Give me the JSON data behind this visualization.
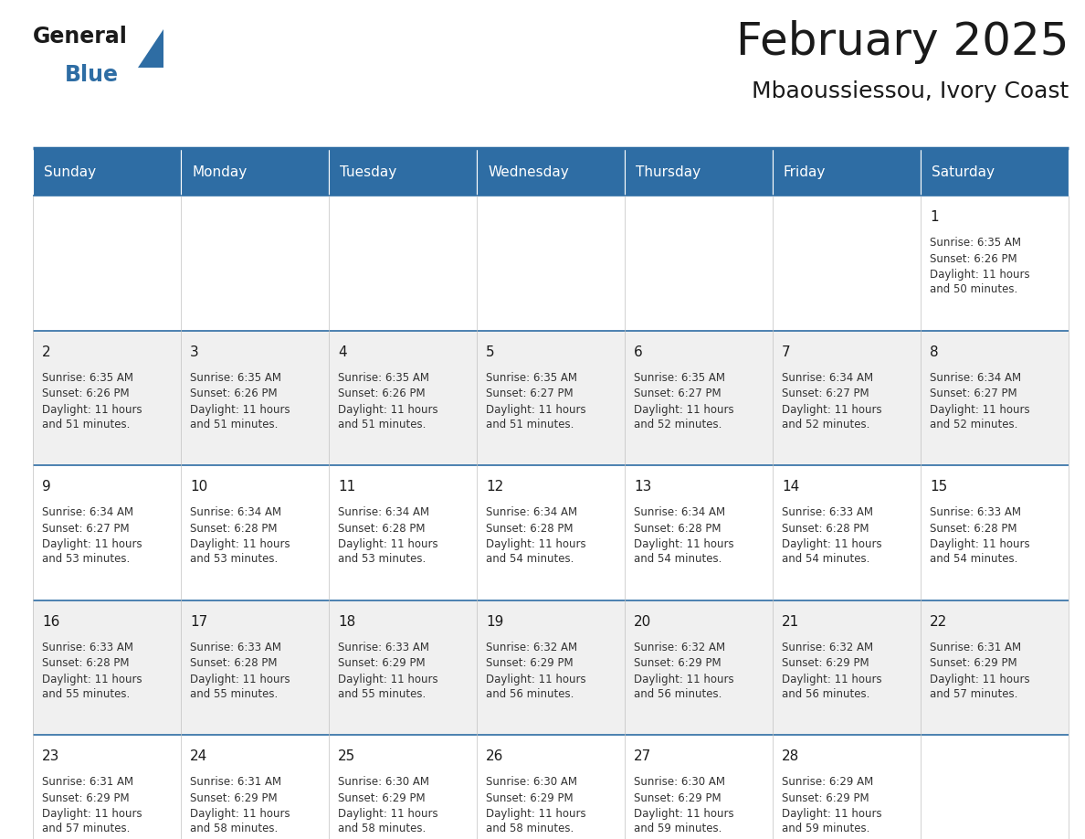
{
  "title": "February 2025",
  "subtitle": "Mbaoussiessou, Ivory Coast",
  "header_color": "#2E6DA4",
  "header_text_color": "#FFFFFF",
  "cell_bg_color": "#F0F0F0",
  "cell_bg_white": "#FFFFFF",
  "border_color": "#2E6DA4",
  "day_headers": [
    "Sunday",
    "Monday",
    "Tuesday",
    "Wednesday",
    "Thursday",
    "Friday",
    "Saturday"
  ],
  "days": [
    {
      "day": 1,
      "col": 6,
      "row": 0,
      "sunrise": "6:35 AM",
      "sunset": "6:26 PM",
      "daylight": "11 hours\nand 50 minutes."
    },
    {
      "day": 2,
      "col": 0,
      "row": 1,
      "sunrise": "6:35 AM",
      "sunset": "6:26 PM",
      "daylight": "11 hours\nand 51 minutes."
    },
    {
      "day": 3,
      "col": 1,
      "row": 1,
      "sunrise": "6:35 AM",
      "sunset": "6:26 PM",
      "daylight": "11 hours\nand 51 minutes."
    },
    {
      "day": 4,
      "col": 2,
      "row": 1,
      "sunrise": "6:35 AM",
      "sunset": "6:26 PM",
      "daylight": "11 hours\nand 51 minutes."
    },
    {
      "day": 5,
      "col": 3,
      "row": 1,
      "sunrise": "6:35 AM",
      "sunset": "6:27 PM",
      "daylight": "11 hours\nand 51 minutes."
    },
    {
      "day": 6,
      "col": 4,
      "row": 1,
      "sunrise": "6:35 AM",
      "sunset": "6:27 PM",
      "daylight": "11 hours\nand 52 minutes."
    },
    {
      "day": 7,
      "col": 5,
      "row": 1,
      "sunrise": "6:34 AM",
      "sunset": "6:27 PM",
      "daylight": "11 hours\nand 52 minutes."
    },
    {
      "day": 8,
      "col": 6,
      "row": 1,
      "sunrise": "6:34 AM",
      "sunset": "6:27 PM",
      "daylight": "11 hours\nand 52 minutes."
    },
    {
      "day": 9,
      "col": 0,
      "row": 2,
      "sunrise": "6:34 AM",
      "sunset": "6:27 PM",
      "daylight": "11 hours\nand 53 minutes."
    },
    {
      "day": 10,
      "col": 1,
      "row": 2,
      "sunrise": "6:34 AM",
      "sunset": "6:28 PM",
      "daylight": "11 hours\nand 53 minutes."
    },
    {
      "day": 11,
      "col": 2,
      "row": 2,
      "sunrise": "6:34 AM",
      "sunset": "6:28 PM",
      "daylight": "11 hours\nand 53 minutes."
    },
    {
      "day": 12,
      "col": 3,
      "row": 2,
      "sunrise": "6:34 AM",
      "sunset": "6:28 PM",
      "daylight": "11 hours\nand 54 minutes."
    },
    {
      "day": 13,
      "col": 4,
      "row": 2,
      "sunrise": "6:34 AM",
      "sunset": "6:28 PM",
      "daylight": "11 hours\nand 54 minutes."
    },
    {
      "day": 14,
      "col": 5,
      "row": 2,
      "sunrise": "6:33 AM",
      "sunset": "6:28 PM",
      "daylight": "11 hours\nand 54 minutes."
    },
    {
      "day": 15,
      "col": 6,
      "row": 2,
      "sunrise": "6:33 AM",
      "sunset": "6:28 PM",
      "daylight": "11 hours\nand 54 minutes."
    },
    {
      "day": 16,
      "col": 0,
      "row": 3,
      "sunrise": "6:33 AM",
      "sunset": "6:28 PM",
      "daylight": "11 hours\nand 55 minutes."
    },
    {
      "day": 17,
      "col": 1,
      "row": 3,
      "sunrise": "6:33 AM",
      "sunset": "6:28 PM",
      "daylight": "11 hours\nand 55 minutes."
    },
    {
      "day": 18,
      "col": 2,
      "row": 3,
      "sunrise": "6:33 AM",
      "sunset": "6:29 PM",
      "daylight": "11 hours\nand 55 minutes."
    },
    {
      "day": 19,
      "col": 3,
      "row": 3,
      "sunrise": "6:32 AM",
      "sunset": "6:29 PM",
      "daylight": "11 hours\nand 56 minutes."
    },
    {
      "day": 20,
      "col": 4,
      "row": 3,
      "sunrise": "6:32 AM",
      "sunset": "6:29 PM",
      "daylight": "11 hours\nand 56 minutes."
    },
    {
      "day": 21,
      "col": 5,
      "row": 3,
      "sunrise": "6:32 AM",
      "sunset": "6:29 PM",
      "daylight": "11 hours\nand 56 minutes."
    },
    {
      "day": 22,
      "col": 6,
      "row": 3,
      "sunrise": "6:31 AM",
      "sunset": "6:29 PM",
      "daylight": "11 hours\nand 57 minutes."
    },
    {
      "day": 23,
      "col": 0,
      "row": 4,
      "sunrise": "6:31 AM",
      "sunset": "6:29 PM",
      "daylight": "11 hours\nand 57 minutes."
    },
    {
      "day": 24,
      "col": 1,
      "row": 4,
      "sunrise": "6:31 AM",
      "sunset": "6:29 PM",
      "daylight": "11 hours\nand 58 minutes."
    },
    {
      "day": 25,
      "col": 2,
      "row": 4,
      "sunrise": "6:30 AM",
      "sunset": "6:29 PM",
      "daylight": "11 hours\nand 58 minutes."
    },
    {
      "day": 26,
      "col": 3,
      "row": 4,
      "sunrise": "6:30 AM",
      "sunset": "6:29 PM",
      "daylight": "11 hours\nand 58 minutes."
    },
    {
      "day": 27,
      "col": 4,
      "row": 4,
      "sunrise": "6:30 AM",
      "sunset": "6:29 PM",
      "daylight": "11 hours\nand 59 minutes."
    },
    {
      "day": 28,
      "col": 5,
      "row": 4,
      "sunrise": "6:29 AM",
      "sunset": "6:29 PM",
      "daylight": "11 hours\nand 59 minutes."
    }
  ],
  "num_rows": 5,
  "num_cols": 7,
  "logo_text_general": "General",
  "logo_text_blue": "Blue",
  "logo_color_general": "#1a1a1a",
  "logo_color_blue": "#2E6DA4",
  "logo_triangle_color": "#2E6DA4",
  "title_fontsize": 36,
  "subtitle_fontsize": 18,
  "day_header_fontsize": 11,
  "day_num_fontsize": 11,
  "cell_text_fontsize": 8.5
}
